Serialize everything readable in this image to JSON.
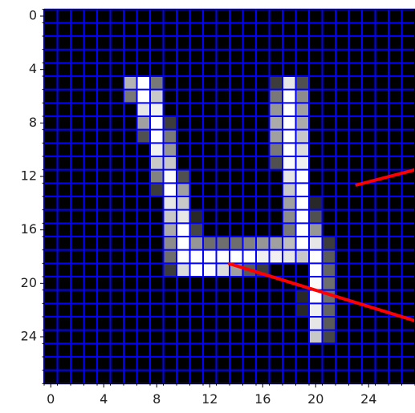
{
  "chart_data": {
    "type": "image",
    "cmap": "gray",
    "pixels": [
      [
        0,
        0,
        0,
        0,
        0,
        0,
        0,
        0,
        0,
        0,
        0,
        0,
        0,
        0,
        0,
        0,
        0,
        0,
        0,
        0,
        0,
        0,
        0,
        0,
        0,
        0,
        0,
        0
      ],
      [
        0,
        0,
        0,
        0,
        0,
        0,
        0,
        0,
        0,
        0,
        0,
        0,
        0,
        0,
        0,
        0,
        0,
        0,
        0,
        0,
        0,
        0,
        0,
        0,
        0,
        0,
        0,
        0
      ],
      [
        0,
        0,
        0,
        0,
        0,
        0,
        0,
        0,
        0,
        0,
        0,
        0,
        0,
        0,
        0,
        0,
        0,
        0,
        0,
        0,
        0,
        0,
        0,
        0,
        0,
        0,
        0,
        0
      ],
      [
        0,
        0,
        0,
        0,
        0,
        0,
        0,
        0,
        0,
        0,
        0,
        0,
        0,
        0,
        0,
        0,
        0,
        0,
        0,
        0,
        0,
        0,
        0,
        0,
        0,
        0,
        0,
        0
      ],
      [
        0,
        0,
        0,
        0,
        0,
        0,
        0,
        0,
        0,
        0,
        0,
        0,
        0,
        0,
        0,
        0,
        0,
        0,
        0,
        0,
        0,
        0,
        0,
        0,
        0,
        0,
        0,
        0
      ],
      [
        0,
        0,
        0,
        0,
        0,
        0,
        180,
        255,
        120,
        0,
        0,
        0,
        0,
        0,
        0,
        0,
        0,
        60,
        230,
        80,
        0,
        0,
        0,
        0,
        0,
        0,
        0,
        0
      ],
      [
        0,
        0,
        0,
        0,
        0,
        0,
        120,
        255,
        200,
        0,
        0,
        0,
        0,
        0,
        0,
        0,
        0,
        120,
        255,
        140,
        0,
        0,
        0,
        0,
        0,
        0,
        0,
        0
      ],
      [
        0,
        0,
        0,
        0,
        0,
        0,
        0,
        230,
        240,
        0,
        0,
        0,
        0,
        0,
        0,
        0,
        0,
        150,
        255,
        160,
        0,
        0,
        0,
        0,
        0,
        0,
        0,
        0
      ],
      [
        0,
        0,
        0,
        0,
        0,
        0,
        0,
        160,
        255,
        60,
        0,
        0,
        0,
        0,
        0,
        0,
        0,
        170,
        255,
        170,
        0,
        0,
        0,
        0,
        0,
        0,
        0,
        0
      ],
      [
        0,
        0,
        0,
        0,
        0,
        0,
        0,
        80,
        255,
        120,
        0,
        0,
        0,
        0,
        0,
        0,
        0,
        160,
        255,
        200,
        0,
        0,
        0,
        0,
        0,
        0,
        0,
        0
      ],
      [
        0,
        0,
        0,
        0,
        0,
        0,
        0,
        0,
        240,
        150,
        0,
        0,
        0,
        0,
        0,
        0,
        0,
        120,
        255,
        220,
        0,
        0,
        0,
        0,
        0,
        0,
        0,
        0
      ],
      [
        0,
        0,
        0,
        0,
        0,
        0,
        0,
        0,
        200,
        200,
        0,
        0,
        0,
        0,
        0,
        0,
        0,
        80,
        250,
        240,
        0,
        0,
        0,
        0,
        0,
        0,
        0,
        0
      ],
      [
        0,
        0,
        0,
        0,
        0,
        0,
        0,
        0,
        130,
        250,
        80,
        0,
        0,
        0,
        0,
        0,
        0,
        0,
        230,
        255,
        0,
        0,
        0,
        0,
        0,
        0,
        0,
        0
      ],
      [
        0,
        0,
        0,
        0,
        0,
        0,
        0,
        0,
        60,
        255,
        160,
        0,
        0,
        0,
        0,
        0,
        0,
        0,
        200,
        255,
        0,
        0,
        0,
        0,
        0,
        0,
        0,
        0
      ],
      [
        0,
        0,
        0,
        0,
        0,
        0,
        0,
        0,
        0,
        230,
        200,
        0,
        0,
        0,
        0,
        0,
        0,
        0,
        160,
        255,
        40,
        0,
        0,
        0,
        0,
        0,
        0,
        0
      ],
      [
        0,
        0,
        0,
        0,
        0,
        0,
        0,
        0,
        0,
        200,
        230,
        40,
        0,
        0,
        0,
        0,
        0,
        0,
        140,
        255,
        80,
        0,
        0,
        0,
        0,
        0,
        0,
        0
      ],
      [
        0,
        0,
        0,
        0,
        0,
        0,
        0,
        0,
        0,
        170,
        255,
        70,
        0,
        0,
        0,
        0,
        0,
        0,
        120,
        255,
        150,
        0,
        0,
        0,
        0,
        0,
        0,
        0
      ],
      [
        0,
        0,
        0,
        0,
        0,
        0,
        0,
        0,
        0,
        140,
        255,
        150,
        110,
        110,
        110,
        130,
        150,
        160,
        190,
        255,
        230,
        60,
        0,
        0,
        0,
        0,
        0,
        0
      ],
      [
        0,
        0,
        0,
        0,
        0,
        0,
        0,
        0,
        0,
        110,
        255,
        255,
        255,
        255,
        255,
        255,
        240,
        240,
        230,
        200,
        255,
        90,
        0,
        0,
        0,
        0,
        0,
        0
      ],
      [
        0,
        0,
        0,
        0,
        0,
        0,
        0,
        0,
        0,
        60,
        220,
        255,
        250,
        220,
        160,
        90,
        60,
        0,
        0,
        0,
        255,
        100,
        0,
        0,
        0,
        0,
        0,
        0
      ],
      [
        0,
        0,
        0,
        0,
        0,
        0,
        0,
        0,
        0,
        0,
        0,
        0,
        0,
        0,
        0,
        0,
        0,
        0,
        0,
        0,
        250,
        110,
        0,
        0,
        0,
        0,
        0,
        0
      ],
      [
        0,
        0,
        0,
        0,
        0,
        0,
        0,
        0,
        0,
        0,
        0,
        0,
        0,
        0,
        0,
        0,
        0,
        0,
        0,
        40,
        255,
        110,
        0,
        0,
        0,
        0,
        0,
        0
      ],
      [
        0,
        0,
        0,
        0,
        0,
        0,
        0,
        0,
        0,
        0,
        0,
        0,
        0,
        0,
        0,
        0,
        0,
        0,
        0,
        40,
        240,
        100,
        0,
        0,
        0,
        0,
        0,
        0
      ],
      [
        0,
        0,
        0,
        0,
        0,
        0,
        0,
        0,
        0,
        0,
        0,
        0,
        0,
        0,
        0,
        0,
        0,
        0,
        0,
        0,
        230,
        90,
        0,
        0,
        0,
        0,
        0,
        0
      ],
      [
        0,
        0,
        0,
        0,
        0,
        0,
        0,
        0,
        0,
        0,
        0,
        0,
        0,
        0,
        0,
        0,
        0,
        0,
        0,
        0,
        200,
        70,
        0,
        0,
        0,
        0,
        0,
        0
      ],
      [
        0,
        0,
        0,
        0,
        0,
        0,
        0,
        0,
        0,
        0,
        0,
        0,
        0,
        0,
        0,
        0,
        0,
        0,
        0,
        0,
        0,
        0,
        0,
        0,
        0,
        0,
        0,
        0
      ],
      [
        0,
        0,
        0,
        0,
        0,
        0,
        0,
        0,
        0,
        0,
        0,
        0,
        0,
        0,
        0,
        0,
        0,
        0,
        0,
        0,
        0,
        0,
        0,
        0,
        0,
        0,
        0,
        0
      ],
      [
        0,
        0,
        0,
        0,
        0,
        0,
        0,
        0,
        0,
        0,
        0,
        0,
        0,
        0,
        0,
        0,
        0,
        0,
        0,
        0,
        0,
        0,
        0,
        0,
        0,
        0,
        0,
        0
      ]
    ],
    "xlim": [
      -0.5,
      27.5
    ],
    "ylim": [
      27.5,
      -0.5
    ],
    "xticks": [
      0,
      4,
      8,
      12,
      16,
      20,
      24
    ],
    "yticks": [
      0,
      4,
      8,
      12,
      16,
      20,
      24
    ],
    "xminorticks": [
      -0.5,
      0.5,
      1.5,
      2.5,
      3.5,
      4.5,
      5.5,
      6.5,
      7.5,
      8.5,
      9.5,
      10.5,
      11.5,
      12.5,
      13.5,
      14.5,
      15.5,
      16.5,
      17.5,
      18.5,
      19.5,
      20.5,
      21.5,
      22.5,
      23.5,
      24.5,
      25.5,
      26.5,
      27.5
    ],
    "yminorticks": [
      -0.5,
      0.5,
      1.5,
      2.5,
      3.5,
      4.5,
      5.5,
      6.5,
      7.5,
      8.5,
      9.5,
      10.5,
      11.5,
      12.5,
      13.5,
      14.5,
      15.5,
      16.5,
      17.5,
      18.5,
      19.5,
      20.5,
      21.5,
      22.5,
      23.5,
      24.5,
      25.5,
      26.5,
      27.5
    ],
    "grid": true,
    "grid_color": "#0000ff",
    "lines": [
      {
        "color": "#ff0000",
        "x": [
          23,
          27.5
        ],
        "y": [
          12.66,
          11.5
        ]
      },
      {
        "color": "#ff0000",
        "x": [
          13.4,
          27.5
        ],
        "y": [
          18.5,
          22.8
        ]
      }
    ]
  }
}
